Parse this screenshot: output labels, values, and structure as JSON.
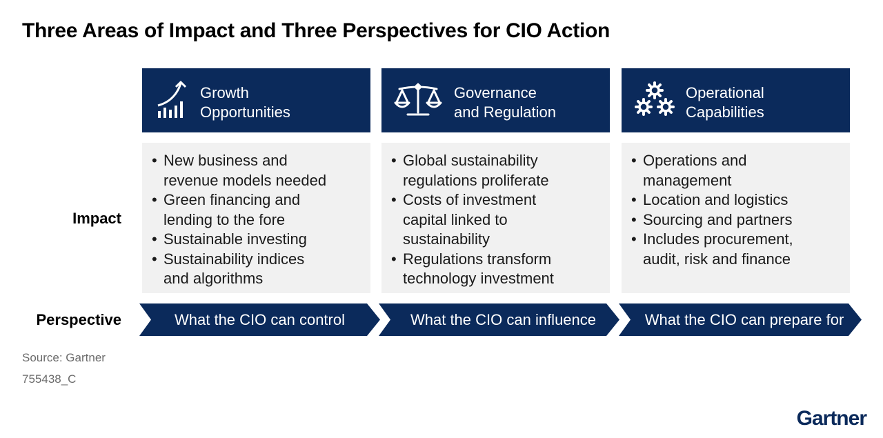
{
  "title": "Three Areas of Impact and Three Perspectives for CIO Action",
  "colors": {
    "header_bg": "#0b2a5b",
    "card_bg": "#f1f1f1",
    "arrow_bg": "#0b2a5b"
  },
  "rows": {
    "impact_label": "Impact",
    "perspective_label": "Perspective"
  },
  "columns": [
    {
      "icon": "growth-chart-icon",
      "header_line1": "Growth",
      "header_line2": "Opportunities",
      "bullets": [
        [
          "New business and",
          "revenue models needed"
        ],
        [
          "Green financing and",
          "lending to the fore"
        ],
        [
          "Sustainable investing"
        ],
        [
          "Sustainability indices",
          "and algorithms"
        ]
      ],
      "perspective": "What the CIO can control"
    },
    {
      "icon": "scales-icon",
      "header_line1": "Governance",
      "header_line2": "and Regulation",
      "bullets": [
        [
          "Global sustainability",
          "regulations proliferate"
        ],
        [
          "Costs of investment",
          "capital linked to",
          "sustainability"
        ],
        [
          "Regulations transform",
          "technology investment"
        ]
      ],
      "perspective": "What the CIO can influence"
    },
    {
      "icon": "gears-icon",
      "header_line1": "Operational",
      "header_line2": "Capabilities",
      "bullets": [
        [
          "Operations and",
          "management"
        ],
        [
          "Location and logistics"
        ],
        [
          "Sourcing and partners"
        ],
        [
          "Includes procurement,",
          "audit, risk and finance"
        ]
      ],
      "perspective": "What the CIO can prepare for"
    }
  ],
  "footer": {
    "source": "Source: Gartner",
    "code": "755438_C"
  },
  "brand": "Gartner"
}
